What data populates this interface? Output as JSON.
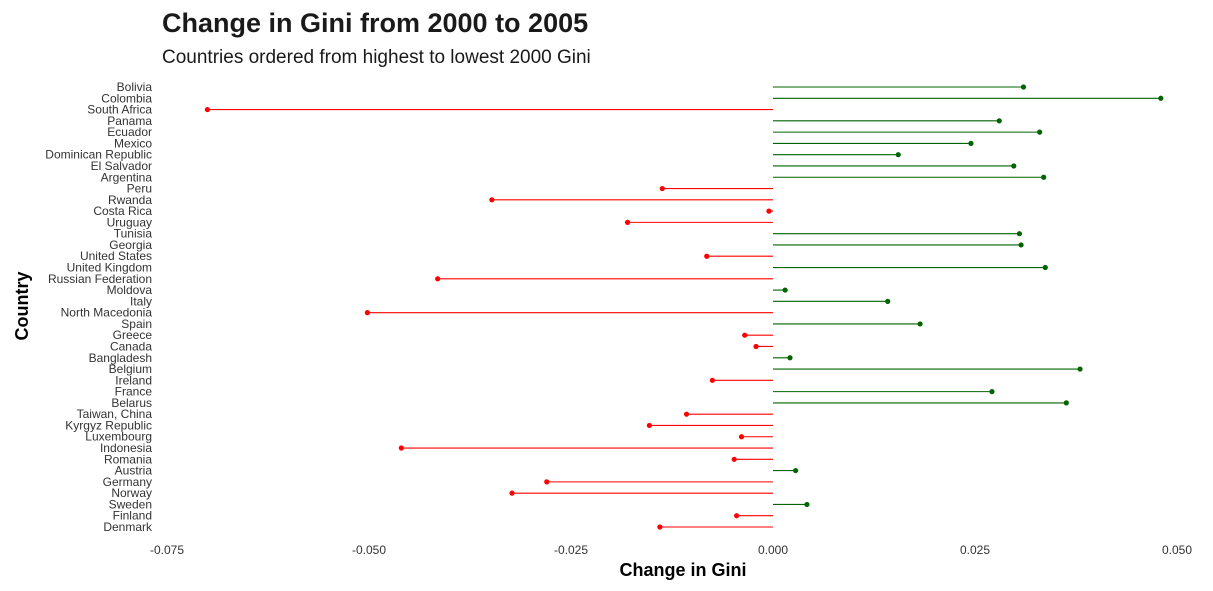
{
  "chart_data": {
    "type": "lollipop",
    "orientation": "horizontal",
    "title": "Change in Gini from 2000 to 2005",
    "subtitle": "Countries ordered from highest to lowest 2000 Gini",
    "xlabel": "Change in Gini",
    "ylabel": "Country",
    "xlim": [
      -0.075,
      0.05
    ],
    "xticks": [
      "-0.075",
      "-0.050",
      "-0.025",
      "0.000",
      "0.025",
      "0.050"
    ],
    "xtick_values": [
      -0.075,
      -0.05,
      -0.025,
      0.0,
      0.025,
      0.05
    ],
    "grid": false,
    "colors": {
      "positive": "#006400",
      "negative": "#ff0000"
    },
    "categories": [
      "Bolivia",
      "Colombia",
      "South Africa",
      "Panama",
      "Ecuador",
      "Mexico",
      "Dominican Republic",
      "El Salvador",
      "Argentina",
      "Peru",
      "Rwanda",
      "Costa Rica",
      "Uruguay",
      "Tunisia",
      "Georgia",
      "United States",
      "United Kingdom",
      "Russian Federation",
      "Moldova",
      "Italy",
      "North Macedonia",
      "Spain",
      "Greece",
      "Canada",
      "Bangladesh",
      "Belgium",
      "Ireland",
      "France",
      "Belarus",
      "Taiwan, China",
      "Kyrgyz Republic",
      "Luxembourg",
      "Indonesia",
      "Romania",
      "Austria",
      "Germany",
      "Norway",
      "Sweden",
      "Finland",
      "Denmark"
    ],
    "values": [
      0.031,
      0.048,
      -0.07,
      0.028,
      0.033,
      0.0245,
      0.0155,
      0.0298,
      0.0335,
      -0.0137,
      -0.0348,
      -0.0005,
      -0.018,
      0.0305,
      0.0307,
      -0.0082,
      0.0337,
      -0.0415,
      0.0015,
      0.0142,
      -0.0502,
      0.0182,
      -0.0035,
      -0.0021,
      0.0021,
      0.038,
      -0.0075,
      0.0271,
      0.0363,
      -0.0107,
      -0.0153,
      -0.0039,
      -0.046,
      -0.0048,
      0.0028,
      -0.028,
      -0.0323,
      0.0042,
      -0.0045,
      -0.014
    ]
  }
}
